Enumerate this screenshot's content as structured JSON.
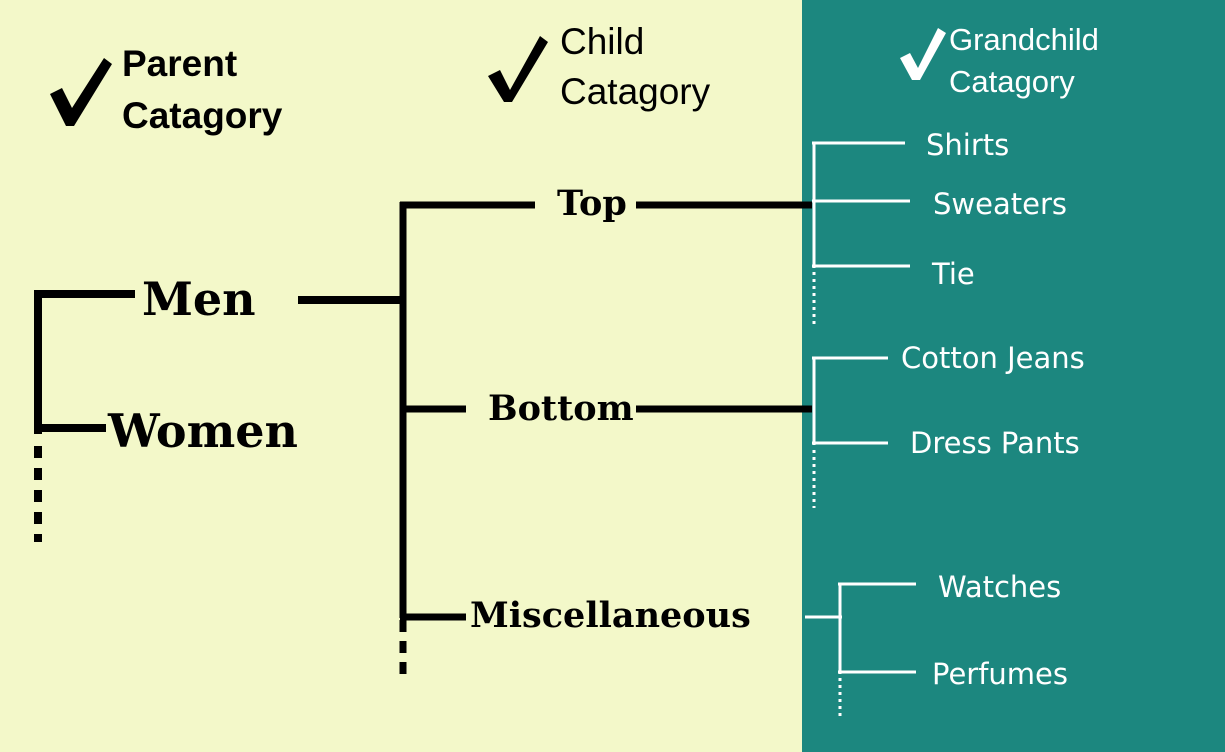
{
  "colors": {
    "background": "#f3f8c9",
    "panel": "#1c877f",
    "dark": "#000000",
    "light": "#ffffff"
  },
  "headers": {
    "parent": [
      "Parent",
      "Catagory"
    ],
    "child": [
      "Child",
      "Catagory"
    ],
    "grandchild": [
      "Grandchild",
      "Catagory"
    ]
  },
  "parents": [
    "Men",
    "Women"
  ],
  "children": [
    "Top",
    "Bottom",
    "Miscellaneous"
  ],
  "grandchildren": {
    "top": [
      "Shirts",
      "Sweaters",
      "Tie"
    ],
    "bottom": [
      "Cotton Jeans",
      "Dress Pants"
    ],
    "misc": [
      "Watches",
      "Perfumes"
    ]
  },
  "icons": [
    "check-icon",
    "check-icon",
    "check-icon"
  ]
}
